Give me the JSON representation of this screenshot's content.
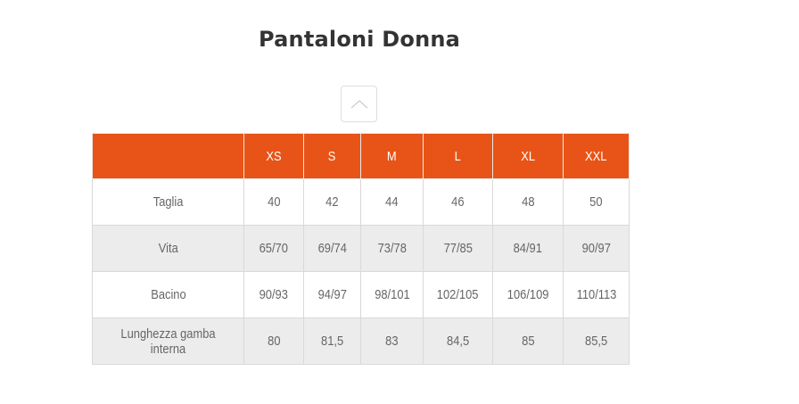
{
  "page": {
    "title": "Pantaloni Donna"
  },
  "toggle": {
    "icon": "chevron-up-icon"
  },
  "table": {
    "header_color": "#e85417",
    "stripe_color": "#ececec",
    "corner_label": "",
    "sizes": [
      "XS",
      "S",
      "M",
      "L",
      "XL",
      "XXL"
    ],
    "rows": [
      {
        "label": "Taglia",
        "values": [
          "40",
          "42",
          "44",
          "46",
          "48",
          "50"
        ]
      },
      {
        "label": "Vita",
        "values": [
          "65/70",
          "69/74",
          "73/78",
          "77/85",
          "84/91",
          "90/97"
        ]
      },
      {
        "label": "Bacino",
        "values": [
          "90/93",
          "94/97",
          "98/101",
          "102/105",
          "106/109",
          "110/113"
        ]
      },
      {
        "label": "Lunghezza gamba interna",
        "values": [
          "80",
          "81,5",
          "83",
          "84,5",
          "85",
          "85,5"
        ]
      }
    ]
  }
}
